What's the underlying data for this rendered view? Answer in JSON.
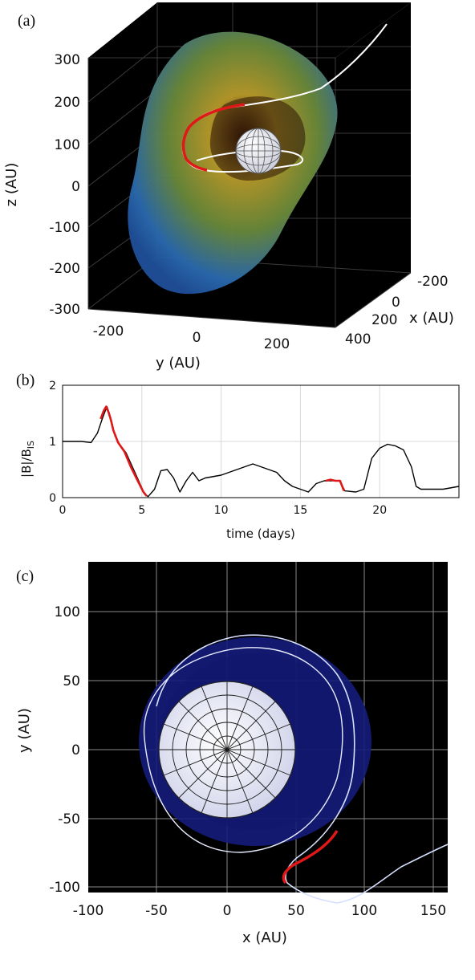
{
  "panel_labels": {
    "a": "(a)",
    "b": "(b)",
    "c": "(c)"
  },
  "chart_data": [
    {
      "id": "a",
      "type": "other",
      "description_kind": "3d-render",
      "xlabel": "x (AU)",
      "ylabel": "y (AU)",
      "zlabel": "z (AU)",
      "xticks": [
        "-200",
        "0",
        "200",
        "400"
      ],
      "yticks": [
        "-200",
        "0",
        "200"
      ],
      "zticks": [
        "300",
        "200",
        "100",
        "0",
        "-100",
        "-200",
        "-300"
      ],
      "xlim": [
        -200,
        400
      ],
      "ylim": [
        -300,
        300
      ],
      "zlim": [
        -300,
        300
      ],
      "colors": {
        "background": "#000000",
        "shell_outer": "#1f5fb0",
        "shell_inner": "#b89a2a",
        "trajectory": "#ffffff",
        "highlight": "#e01818"
      }
    },
    {
      "id": "b",
      "type": "line",
      "xlabel": "time (days)",
      "ylabel_main": "|B|/B",
      "ylabel_sub": "IS",
      "xticks": [
        "0",
        "5",
        "10",
        "15",
        "20"
      ],
      "yticks": [
        "0",
        "1",
        "2"
      ],
      "xlim": [
        0,
        25
      ],
      "ylim": [
        0,
        2
      ],
      "grid": true,
      "series": [
        {
          "color": "#000000",
          "x": [
            0,
            1.2,
            1.8,
            2.2,
            2.5,
            2.7,
            2.8,
            2.95,
            3.1,
            3.3,
            3.6,
            4.0,
            4.4,
            4.8,
            5.2,
            5.4,
            5.8,
            6.2,
            6.6,
            7.0,
            7.4,
            7.8,
            8.2,
            8.6,
            9.0,
            10.0,
            11.0,
            12.0,
            13.0,
            13.5,
            14.0,
            14.5,
            15.0,
            15.5,
            16.0,
            16.5,
            17.0,
            17.5,
            17.8,
            18.5,
            19.0,
            19.5,
            20.0,
            20.5,
            21.0,
            21.5,
            22.0,
            22.3,
            22.6,
            23.0,
            24.0,
            25.0
          ],
          "y": [
            1.0,
            1.0,
            0.98,
            1.15,
            1.4,
            1.55,
            1.62,
            1.5,
            1.35,
            1.1,
            0.95,
            0.8,
            0.55,
            0.3,
            0.05,
            0.02,
            0.15,
            0.48,
            0.5,
            0.35,
            0.1,
            0.3,
            0.45,
            0.3,
            0.35,
            0.4,
            0.5,
            0.6,
            0.5,
            0.45,
            0.3,
            0.2,
            0.15,
            0.1,
            0.25,
            0.3,
            0.3,
            0.3,
            0.12,
            0.1,
            0.15,
            0.7,
            0.88,
            0.95,
            0.92,
            0.85,
            0.55,
            0.2,
            0.15,
            0.15,
            0.15,
            0.2
          ]
        },
        {
          "color": "#e01818",
          "x": [
            2.4,
            2.6,
            2.75,
            2.9,
            3.05,
            3.2,
            3.5,
            3.9,
            4.3,
            4.7,
            5.1,
            5.3
          ],
          "y": [
            1.4,
            1.55,
            1.62,
            1.52,
            1.38,
            1.2,
            0.98,
            0.82,
            0.55,
            0.32,
            0.1,
            0.03
          ]
        },
        {
          "color": "#e01818",
          "x": [
            16.6,
            16.9,
            17.2,
            17.5,
            17.75
          ],
          "y": [
            0.3,
            0.32,
            0.3,
            0.3,
            0.12
          ]
        }
      ]
    },
    {
      "id": "c",
      "type": "other",
      "description_kind": "2d-projection",
      "xlabel": "x (AU)",
      "ylabel": "y (AU)",
      "xticks": [
        "-100",
        "-50",
        "0",
        "50",
        "100",
        "150"
      ],
      "yticks": [
        "100",
        "50",
        "0",
        "-50",
        "-100"
      ],
      "xlim": [
        -110,
        162
      ],
      "ylim": [
        -125,
        135
      ],
      "colors": {
        "background": "#000000",
        "disk": "#141c7a",
        "sphere": "#e8eaf6",
        "trajectory": "#ffffff",
        "highlight": "#e01818"
      }
    }
  ]
}
